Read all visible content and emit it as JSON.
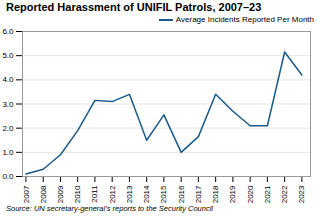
{
  "chart_data": {
    "type": "line",
    "title": "Reported Harassment of UNIFIL Patrols, 2007–23",
    "source": "Source: UN secretary-general’s reports to the Security Council",
    "x": [
      2007,
      2008,
      2009,
      2010,
      2011,
      2012,
      2013,
      2014,
      2015,
      2016,
      2017,
      2018,
      2019,
      2020,
      2021,
      2022,
      2023
    ],
    "series": [
      {
        "name": "Average Incidents Reported Per Month",
        "color": "#1a5a8a",
        "values": [
          0.1,
          0.3,
          0.9,
          1.9,
          3.15,
          3.1,
          3.4,
          1.5,
          2.55,
          1.0,
          1.65,
          3.4,
          2.7,
          2.1,
          2.1,
          5.15,
          4.2
        ]
      }
    ],
    "xlim": [
      2006.8,
      2023.5
    ],
    "xticks": [
      2007,
      2008,
      2009,
      2010,
      2011,
      2012,
      2013,
      2014,
      2015,
      2016,
      2017,
      2018,
      2019,
      2020,
      2021,
      2022,
      2023
    ],
    "ylim": [
      0,
      6
    ],
    "yticks": [
      0,
      1,
      2,
      3,
      4,
      5,
      6
    ],
    "grid": true,
    "legend": "upper right"
  }
}
